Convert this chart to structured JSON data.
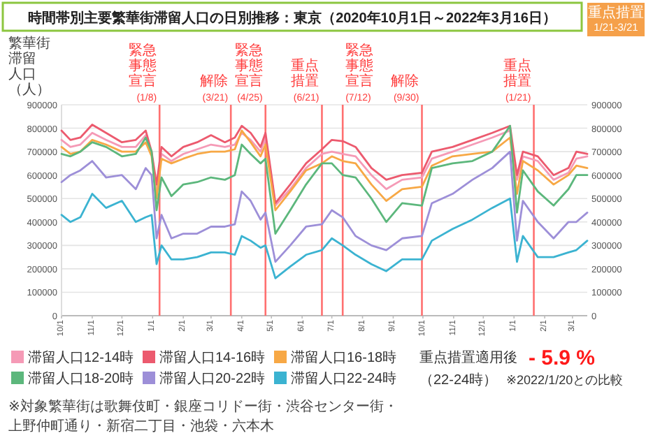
{
  "chart_data": {
    "type": "line",
    "title": "時間帯別主要繁華街滞留人口の日別推移：東京（2020年10月1日～2022年3月16日）",
    "ylabel": "繁華街滞留人口（人）",
    "x": [
      "2020-10-01",
      "2020-10-10",
      "2020-10-20",
      "2020-11-01",
      "2020-11-15",
      "2020-12-01",
      "2020-12-15",
      "2020-12-25",
      "2020-12-31",
      "2021-01-05",
      "2021-01-10",
      "2021-01-20",
      "2021-02-01",
      "2021-02-15",
      "2021-03-01",
      "2021-03-15",
      "2021-03-25",
      "2021-04-01",
      "2021-04-10",
      "2021-04-20",
      "2021-04-25",
      "2021-05-05",
      "2021-05-20",
      "2021-06-05",
      "2021-06-21",
      "2021-07-01",
      "2021-07-12",
      "2021-07-25",
      "2021-08-10",
      "2021-08-25",
      "2021-09-10",
      "2021-09-30",
      "2021-10-10",
      "2021-10-31",
      "2021-11-20",
      "2021-12-10",
      "2021-12-28",
      "2022-01-04",
      "2022-01-10",
      "2022-01-25",
      "2022-02-10",
      "2022-02-25",
      "2022-03-05",
      "2022-03-16"
    ],
    "series": [
      {
        "name": "滞留人口12-14時",
        "color": "#f59ab6",
        "values": [
          750000,
          720000,
          730000,
          780000,
          750000,
          720000,
          720000,
          770000,
          690000,
          540000,
          690000,
          660000,
          690000,
          710000,
          730000,
          720000,
          730000,
          780000,
          750000,
          700000,
          760000,
          470000,
          540000,
          630000,
          690000,
          700000,
          690000,
          680000,
          600000,
          540000,
          580000,
          590000,
          670000,
          700000,
          730000,
          760000,
          790000,
          580000,
          680000,
          660000,
          580000,
          610000,
          670000,
          680000
        ]
      },
      {
        "name": "滞留人口14-16時",
        "color": "#ec5a6e",
        "values": [
          790000,
          750000,
          760000,
          815000,
          780000,
          740000,
          750000,
          790000,
          700000,
          560000,
          720000,
          680000,
          720000,
          740000,
          770000,
          740000,
          760000,
          810000,
          780000,
          720000,
          780000,
          480000,
          560000,
          650000,
          710000,
          750000,
          745000,
          720000,
          630000,
          580000,
          600000,
          610000,
          700000,
          720000,
          750000,
          780000,
          810000,
          600000,
          700000,
          680000,
          600000,
          630000,
          700000,
          690000
        ]
      },
      {
        "name": "滞留人口16-18時",
        "color": "#f7a845",
        "values": [
          720000,
          690000,
          700000,
          750000,
          730000,
          700000,
          700000,
          740000,
          680000,
          500000,
          670000,
          650000,
          670000,
          690000,
          700000,
          700000,
          710000,
          790000,
          740000,
          680000,
          730000,
          450000,
          530000,
          620000,
          650000,
          680000,
          660000,
          650000,
          560000,
          490000,
          540000,
          550000,
          640000,
          680000,
          690000,
          700000,
          760000,
          520000,
          660000,
          620000,
          560000,
          600000,
          640000,
          630000
        ]
      },
      {
        "name": "滞留人口18-20時",
        "color": "#5cb77c",
        "values": [
          690000,
          680000,
          700000,
          740000,
          720000,
          680000,
          690000,
          760000,
          700000,
          450000,
          590000,
          510000,
          560000,
          570000,
          590000,
          580000,
          600000,
          730000,
          690000,
          650000,
          670000,
          350000,
          450000,
          560000,
          650000,
          650000,
          600000,
          590000,
          500000,
          400000,
          480000,
          470000,
          630000,
          650000,
          660000,
          700000,
          810000,
          440000,
          620000,
          530000,
          470000,
          540000,
          600000,
          600000
        ]
      },
      {
        "name": "滞留人口20-22時",
        "color": "#9d8fd8",
        "values": [
          570000,
          600000,
          620000,
          660000,
          590000,
          600000,
          540000,
          630000,
          600000,
          330000,
          430000,
          330000,
          350000,
          350000,
          380000,
          380000,
          390000,
          530000,
          490000,
          410000,
          440000,
          230000,
          300000,
          380000,
          390000,
          450000,
          420000,
          340000,
          300000,
          280000,
          330000,
          340000,
          480000,
          520000,
          580000,
          630000,
          700000,
          320000,
          490000,
          400000,
          330000,
          400000,
          400000,
          440000
        ]
      },
      {
        "name": "滞留人口22-24時",
        "color": "#3bb3d1",
        "values": [
          430000,
          400000,
          420000,
          520000,
          460000,
          490000,
          400000,
          420000,
          430000,
          220000,
          300000,
          240000,
          240000,
          250000,
          270000,
          270000,
          260000,
          340000,
          320000,
          290000,
          300000,
          160000,
          210000,
          260000,
          280000,
          330000,
          300000,
          260000,
          220000,
          190000,
          240000,
          240000,
          320000,
          370000,
          410000,
          460000,
          500000,
          230000,
          340000,
          250000,
          250000,
          270000,
          280000,
          320000
        ]
      }
    ],
    "xlim": [
      "2020-10-01",
      "2022-03-16"
    ],
    "xticks": [
      {
        "value": "2020-10-01",
        "label": "10/1"
      },
      {
        "value": "2020-11-01",
        "label": "11/1"
      },
      {
        "value": "2020-12-01",
        "label": "12/1"
      },
      {
        "value": "2021-01-01",
        "label": "1/1"
      },
      {
        "value": "2021-02-01",
        "label": "2/1"
      },
      {
        "value": "2021-03-01",
        "label": "3/1"
      },
      {
        "value": "2021-04-01",
        "label": "4/1"
      },
      {
        "value": "2021-05-01",
        "label": "5/1"
      },
      {
        "value": "2021-06-01",
        "label": "6/1"
      },
      {
        "value": "2021-07-01",
        "label": "7/1"
      },
      {
        "value": "2021-08-01",
        "label": "8/1"
      },
      {
        "value": "2021-09-01",
        "label": "9/1"
      },
      {
        "value": "2021-10-01",
        "label": "10/1"
      },
      {
        "value": "2021-11-01",
        "label": "11/1"
      },
      {
        "value": "2021-12-01",
        "label": "12/1"
      },
      {
        "value": "2022-01-01",
        "label": "1/1"
      },
      {
        "value": "2022-02-01",
        "label": "2/1"
      },
      {
        "value": "2022-03-01",
        "label": "3/1"
      }
    ],
    "ylim": [
      0,
      900000
    ],
    "yticks": [
      0,
      100000,
      200000,
      300000,
      400000,
      500000,
      600000,
      700000,
      800000,
      900000
    ],
    "y2lim": [
      0,
      900000
    ],
    "y2ticks": [
      0,
      100000,
      200000,
      300000,
      400000,
      500000,
      600000,
      700000,
      800000,
      900000
    ],
    "grid": "y",
    "legend": "bottom",
    "ref_lines": [
      {
        "axis": "x",
        "value": "2021-01-08",
        "label": "緊急事態宣言(1/8)",
        "color": "#ff7070"
      },
      {
        "axis": "x",
        "value": "2021-03-21",
        "label": "解除(3/21)",
        "color": "#ff7070"
      },
      {
        "axis": "x",
        "value": "2021-04-25",
        "label": "緊急事態宣言(4/25)",
        "color": "#ff7070"
      },
      {
        "axis": "x",
        "value": "2021-06-21",
        "label": "重点措置(6/21)",
        "color": "#ff7070"
      },
      {
        "axis": "x",
        "value": "2021-07-12",
        "label": "緊急事態宣言(7/12)",
        "color": "#ff7070"
      },
      {
        "axis": "x",
        "value": "2021-09-30",
        "label": "解除(9/30)",
        "color": "#ff7070"
      },
      {
        "axis": "x",
        "value": "2022-01-21",
        "label": "重点措置(1/21)",
        "color": "#ff7070"
      }
    ],
    "annotations": [
      "重点措置 1/21-3/21",
      "重点措置適用後",
      "- 5.9 %",
      "（22-24時）",
      "※2022/1/20との比較",
      "※対象繁華街は歌舞伎町・銀座コリドー街・渋谷センター街・上野仲町通り・新宿二丁目・池袋・六本木"
    ]
  }
}
